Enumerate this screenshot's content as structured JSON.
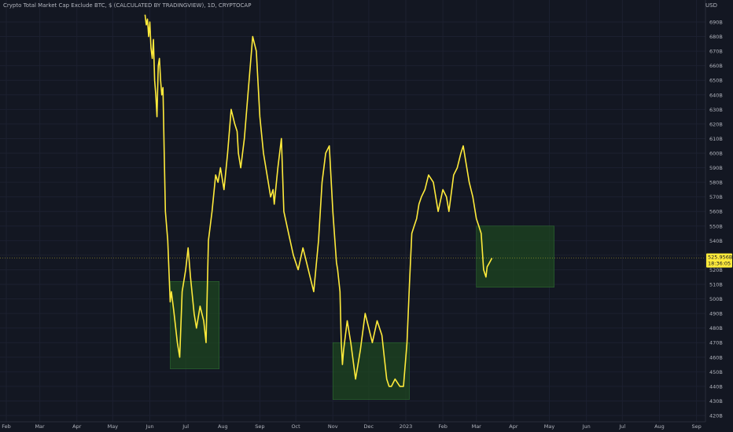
{
  "chart_data": {
    "type": "line",
    "title": "Crypto Total Market Cap Exclude BTC, $ (CALCULATED BY TRADINGVIEW), 1D, CRYPTOCAP",
    "currency": "USD",
    "x_ticks": [
      "Feb",
      "Mar",
      "Apr",
      "May",
      "Jun",
      "Jul",
      "Aug",
      "Sep",
      "Oct",
      "Nov",
      "Dec",
      "2023",
      "Feb",
      "Mar",
      "Apr",
      "May",
      "Jun",
      "Jul",
      "Aug",
      "Sep"
    ],
    "y_ticks": [
      "420B",
      "430B",
      "440B",
      "450B",
      "460B",
      "470B",
      "480B",
      "490B",
      "500B",
      "510B",
      "520B",
      "530B",
      "540B",
      "550B",
      "560B",
      "570B",
      "580B",
      "590B",
      "600B",
      "610B",
      "620B",
      "630B",
      "640B",
      "650B",
      "660B",
      "670B",
      "680B",
      "690B"
    ],
    "ylim": [
      417,
      697
    ],
    "line_color": "#ffeb3b",
    "zone_color": "#1e4620",
    "series": [
      {
        "name": "",
        "x": [
          "2022-05-28",
          "2022-05-29",
          "2022-05-30",
          "2022-05-31",
          "2022-06-01",
          "2022-06-02",
          "2022-06-03",
          "2022-06-04",
          "2022-06-05",
          "2022-06-06",
          "2022-06-07",
          "2022-06-08",
          "2022-06-09",
          "2022-06-10",
          "2022-06-11",
          "2022-06-12",
          "2022-06-13",
          "2022-06-14",
          "2022-06-16",
          "2022-06-18",
          "2022-06-19",
          "2022-06-21",
          "2022-06-24",
          "2022-06-26",
          "2022-06-28",
          "2022-07-01",
          "2022-07-03",
          "2022-07-05",
          "2022-07-08",
          "2022-07-10",
          "2022-07-13",
          "2022-07-16",
          "2022-07-18",
          "2022-07-20",
          "2022-07-23",
          "2022-07-26",
          "2022-07-28",
          "2022-07-30",
          "2022-08-02",
          "2022-08-05",
          "2022-08-08",
          "2022-08-11",
          "2022-08-13",
          "2022-08-14",
          "2022-08-16",
          "2022-08-19",
          "2022-08-22",
          "2022-08-26",
          "2022-08-29",
          "2022-09-01",
          "2022-09-04",
          "2022-09-08",
          "2022-09-10",
          "2022-09-12",
          "2022-09-13",
          "2022-09-16",
          "2022-09-19",
          "2022-09-21",
          "2022-09-25",
          "2022-09-29",
          "2022-10-03",
          "2022-10-07",
          "2022-10-10",
          "2022-10-13",
          "2022-10-16",
          "2022-10-20",
          "2022-10-23",
          "2022-10-26",
          "2022-10-29",
          "2022-11-01",
          "2022-11-04",
          "2022-11-05",
          "2022-11-07",
          "2022-11-08",
          "2022-11-09",
          "2022-11-10",
          "2022-11-13",
          "2022-11-16",
          "2022-11-20",
          "2022-11-24",
          "2022-11-28",
          "2022-12-01",
          "2022-12-04",
          "2022-12-08",
          "2022-12-12",
          "2022-12-14",
          "2022-12-16",
          "2022-12-18",
          "2022-12-20",
          "2022-12-23",
          "2022-12-27",
          "2022-12-30",
          "2023-01-02",
          "2023-01-04",
          "2023-01-06",
          "2023-01-08",
          "2023-01-10",
          "2023-01-12",
          "2023-01-14",
          "2023-01-17",
          "2023-01-20",
          "2023-01-24",
          "2023-01-28",
          "2023-02-01",
          "2023-02-04",
          "2023-02-06",
          "2023-02-10",
          "2023-02-13",
          "2023-02-16",
          "2023-02-18",
          "2023-02-20",
          "2023-02-23",
          "2023-02-26",
          "2023-03-01",
          "2023-03-03",
          "2023-03-05",
          "2023-03-07",
          "2023-03-09",
          "2023-03-10",
          "2023-03-12",
          "2023-03-14"
        ],
        "y": [
          695,
          688,
          692,
          680,
          690,
          672,
          665,
          678,
          650,
          640,
          625,
          660,
          665,
          650,
          640,
          645,
          600,
          560,
          540,
          498,
          505,
          492,
          470,
          460,
          505,
          520,
          535,
          515,
          490,
          480,
          495,
          485,
          470,
          540,
          560,
          585,
          580,
          590,
          575,
          600,
          630,
          620,
          615,
          600,
          590,
          610,
          640,
          680,
          670,
          625,
          600,
          580,
          570,
          575,
          565,
          590,
          610,
          560,
          545,
          530,
          520,
          535,
          525,
          515,
          505,
          540,
          580,
          600,
          605,
          560,
          525,
          520,
          505,
          470,
          455,
          465,
          485,
          470,
          445,
          465,
          490,
          480,
          470,
          485,
          475,
          460,
          445,
          440,
          440,
          445,
          440,
          440,
          470,
          510,
          545,
          550,
          555,
          565,
          570,
          575,
          585,
          580,
          560,
          575,
          570,
          560,
          585,
          590,
          600,
          605,
          595,
          580,
          570,
          555,
          550,
          545,
          520,
          515,
          522,
          525,
          528
        ]
      }
    ],
    "last_value": "525.956B",
    "countdown": "18:36:05",
    "zones": [
      {
        "x0": "2022-06-18",
        "x1": "2022-07-29",
        "y0": 452,
        "y1": 512
      },
      {
        "x0": "2022-11-01",
        "x1": "2023-01-04",
        "y0": 431,
        "y1": 470
      },
      {
        "x0": "2023-03-01",
        "x1": "2023-05-05",
        "y0": 508,
        "y1": 550
      }
    ]
  }
}
